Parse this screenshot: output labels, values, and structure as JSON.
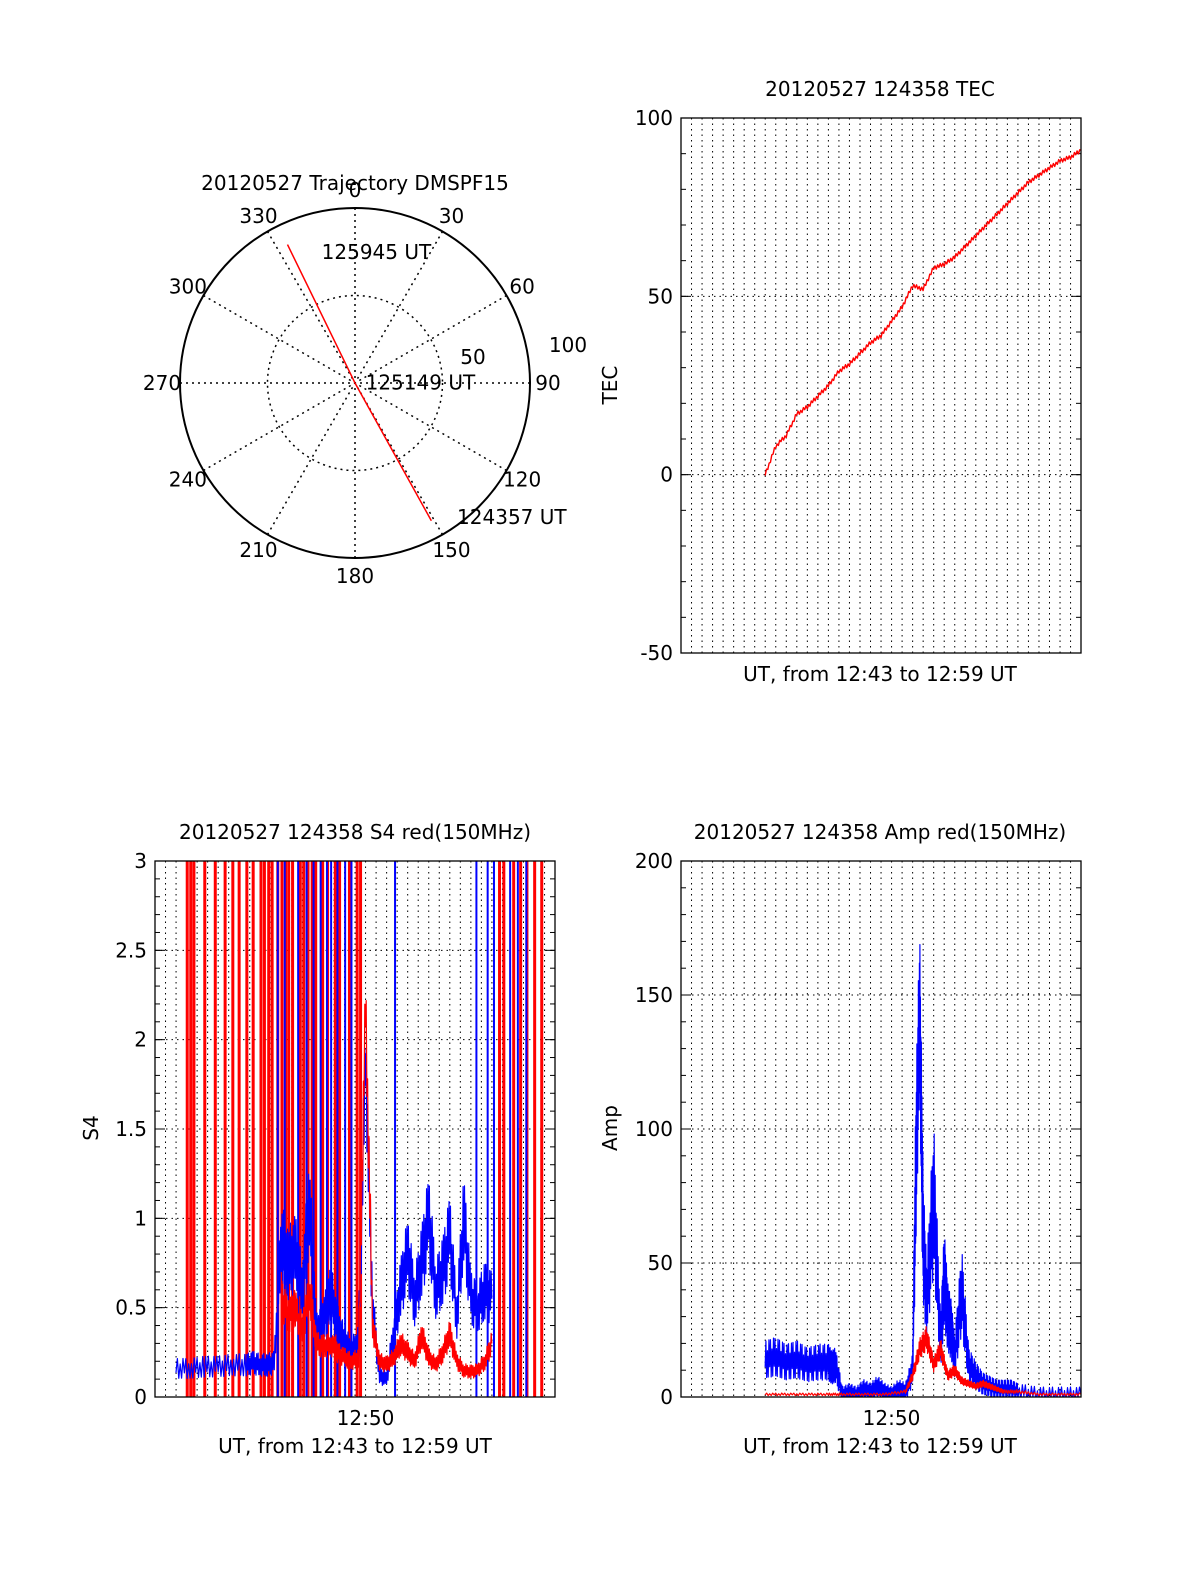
{
  "colors": {
    "red": "#ff0000",
    "blue": "#0000ff",
    "axis": "#000000",
    "grid": "#000000"
  },
  "chart_data": [
    {
      "id": "trajectory",
      "type": "polar",
      "title": "20120527 Trajectory DMSPF15",
      "angle_labels": [
        "0",
        "30",
        "60",
        "90",
        "120",
        "150",
        "180",
        "210",
        "240",
        "270",
        "300",
        "330"
      ],
      "radial_range": [
        0,
        100
      ],
      "radial_ticks": [
        50,
        100
      ],
      "radial_tick_labels": [
        "50",
        "100"
      ],
      "radial_ticks_note": "elevation/zenith radius in data units",
      "series": [
        {
          "color": "red",
          "points": [
            {
              "az": 334,
              "r": 88
            },
            {
              "az": 0,
              "r": 0
            },
            {
              "az": 151,
              "r": 90
            }
          ]
        }
      ],
      "annotations": [
        {
          "text": "125945 UT",
          "az": 345,
          "r": 78
        },
        {
          "text": "125149 UT",
          "az": 80,
          "r": 5
        },
        {
          "text": "124357 UT",
          "az": 143,
          "r": 95
        }
      ]
    },
    {
      "id": "tec",
      "type": "line",
      "title": "20120527 124358 TEC",
      "xlabel": "UT, from 12:43 to 12:59 UT",
      "ylabel": "TEC",
      "xlim": [
        12.6667,
        12.9833
      ],
      "ylim": [
        -50,
        100
      ],
      "yticks": [
        -50,
        0,
        50,
        100
      ],
      "ytick_labels": [
        "-50",
        "0",
        "50",
        "100"
      ],
      "xtick_labels": [],
      "grid": true,
      "series": [
        {
          "color": "red",
          "x": [
            12.7333,
            12.7417,
            12.75,
            12.7583,
            12.7667,
            12.775,
            12.7833,
            12.7917,
            12.8,
            12.8083,
            12.8167,
            12.825,
            12.8333,
            12.8417,
            12.85,
            12.8583,
            12.8667,
            12.875,
            12.8833,
            12.8917,
            12.9,
            12.9083,
            12.9167,
            12.925,
            12.9333,
            12.9417,
            12.95,
            12.9583,
            12.9667,
            12.975,
            12.9833
          ],
          "y": [
            0,
            8,
            11,
            17,
            19,
            22,
            25,
            29,
            31,
            34,
            37,
            39,
            43,
            47,
            53,
            52,
            58,
            59,
            61,
            64,
            67,
            70,
            73,
            76,
            79,
            82,
            84,
            86,
            88,
            89,
            91
          ]
        }
      ]
    },
    {
      "id": "s4",
      "type": "line",
      "title": "20120527 124358 S4 red(150MHz)",
      "xlabel": "UT, from 12:43 to 12:59 UT",
      "ylabel": "S4",
      "xlim": [
        12.6667,
        12.9833
      ],
      "ylim": [
        0,
        3
      ],
      "yticks": [
        0,
        0.5,
        1,
        1.5,
        2,
        2.5,
        3
      ],
      "ytick_labels": [
        "0",
        "0.5",
        "1",
        "1.5",
        "2",
        "2.5",
        "3"
      ],
      "xticks": [
        12.8333
      ],
      "xtick_labels": [
        "12:50"
      ],
      "grid": true,
      "spikes_red_x": [
        12.6922,
        12.695,
        12.6975,
        12.7061,
        12.7144,
        12.7222,
        12.7283,
        12.7333,
        12.7394,
        12.7444,
        12.7506,
        12.7533,
        12.7567,
        12.7594,
        12.7639,
        12.7672,
        12.77,
        12.7725,
        12.7756,
        12.7817,
        12.7844,
        12.7878,
        12.7911,
        12.7939,
        12.7994,
        12.8033,
        12.8094,
        12.8128,
        12.8206,
        12.8267,
        12.8294,
        12.9394,
        12.9428,
        12.9506,
        12.9561,
        12.9611,
        12.9672,
        12.9728
      ],
      "spikes_blue_x": [
        12.7639,
        12.7694,
        12.78,
        12.7867,
        12.7922,
        12.7978,
        12.8028,
        12.8061,
        12.8111,
        12.8172,
        12.8222,
        12.8567,
        12.9211,
        12.93,
        12.935,
        12.9478,
        12.9539,
        12.9606
      ],
      "series": [
        {
          "name": "",
          "color": "blue",
          "x": [
            12.6833,
            12.6944,
            12.7056,
            12.7167,
            12.7278,
            12.7389,
            12.7444,
            12.75,
            12.7556,
            12.7611,
            12.7667,
            12.7722,
            12.7778,
            12.7833,
            12.7889,
            12.7944,
            12.8,
            12.8056,
            12.8111,
            12.8167,
            12.8222,
            12.8278,
            12.8333,
            12.8389,
            12.8444,
            12.85,
            12.8556,
            12.8611,
            12.8667,
            12.8722,
            12.8778,
            12.8833,
            12.8889,
            12.8944,
            12.9,
            12.9056,
            12.9111,
            12.9167,
            12.9222,
            12.9278,
            12.9333
          ],
          "y": [
            0.16,
            0.16,
            0.17,
            0.17,
            0.18,
            0.18,
            0.19,
            0.18,
            0.18,
            0.19,
            0.9,
            0.75,
            0.8,
            0.6,
            1.1,
            0.35,
            0.45,
            0.6,
            0.4,
            0.3,
            0.25,
            0.3,
            1.9,
            0.5,
            0.12,
            0.1,
            0.35,
            0.6,
            0.8,
            0.55,
            0.75,
            1.0,
            0.6,
            0.7,
            0.9,
            0.45,
            1.0,
            0.55,
            0.5,
            0.6,
            0.55
          ]
        },
        {
          "name": "",
          "color": "red",
          "x": [
            12.7667,
            12.7722,
            12.7778,
            12.7833,
            12.7889,
            12.7944,
            12.8,
            12.8056,
            12.8111,
            12.8167,
            12.8222,
            12.8278,
            12.8333,
            12.8389,
            12.8444,
            12.85,
            12.8556,
            12.8611,
            12.8667,
            12.8722,
            12.8778,
            12.8833,
            12.8889,
            12.8944,
            12.9,
            12.9056,
            12.9111,
            12.9167,
            12.9222,
            12.9278,
            12.9333
          ],
          "y": [
            0.55,
            0.45,
            0.5,
            0.35,
            0.6,
            0.3,
            0.28,
            0.3,
            0.25,
            0.22,
            0.2,
            0.22,
            2.2,
            0.4,
            0.2,
            0.18,
            0.22,
            0.3,
            0.25,
            0.2,
            0.35,
            0.22,
            0.18,
            0.25,
            0.35,
            0.2,
            0.15,
            0.14,
            0.15,
            0.2,
            0.3
          ]
        }
      ]
    },
    {
      "id": "amp",
      "type": "line",
      "title": "20120527 124358 Amp red(150MHz)",
      "xlabel": "UT, from 12:43 to 12:59 UT",
      "ylabel": "Amp",
      "xlim": [
        12.6667,
        12.9833
      ],
      "ylim": [
        0,
        200
      ],
      "yticks": [
        0,
        50,
        100,
        150,
        200
      ],
      "ytick_labels": [
        "0",
        "50",
        "100",
        "150",
        "200"
      ],
      "xticks": [
        12.8333
      ],
      "xtick_labels": [
        "12:50"
      ],
      "grid": true,
      "series": [
        {
          "name": "",
          "color": "blue",
          "x": [
            12.7333,
            12.7417,
            12.75,
            12.7583,
            12.7667,
            12.775,
            12.7833,
            12.7861,
            12.7889,
            12.7944,
            12.8,
            12.8056,
            12.8111,
            12.8167,
            12.8222,
            12.8278,
            12.8333,
            12.8389,
            12.8444,
            12.85,
            12.8528,
            12.8556,
            12.8583,
            12.8611,
            12.8667,
            12.8722,
            12.875,
            12.8778,
            12.8806,
            12.8833,
            12.8889,
            12.8944,
            12.9,
            12.9056,
            12.9111,
            12.9167,
            12.9222,
            12.9278,
            12.9333,
            12.95,
            12.9667,
            12.9833
          ],
          "y": [
            14,
            15,
            13,
            14,
            12,
            13,
            13,
            11,
            12,
            1,
            2,
            1,
            3,
            2,
            4,
            2,
            1,
            3,
            2,
            10,
            90,
            145,
            60,
            35,
            75,
            20,
            45,
            30,
            25,
            15,
            40,
            12,
            8,
            5,
            4,
            3,
            3,
            3,
            2,
            1,
            1,
            1
          ]
        },
        {
          "name": "",
          "color": "red",
          "x": [
            12.7333,
            12.75,
            12.7667,
            12.7833,
            12.7944,
            12.8111,
            12.8278,
            12.8444,
            12.85,
            12.8556,
            12.8611,
            12.8667,
            12.8722,
            12.8778,
            12.8833,
            12.8889,
            12.8944,
            12.9,
            12.9056,
            12.9111,
            12.9167,
            12.9222,
            12.9333,
            12.95,
            12.9667,
            12.9833
          ],
          "y": [
            1,
            1,
            1,
            1,
            1,
            1,
            1,
            2,
            8,
            18,
            22,
            12,
            18,
            8,
            10,
            6,
            5,
            4,
            5,
            4,
            3,
            2,
            2,
            1,
            1,
            1
          ]
        }
      ]
    }
  ]
}
